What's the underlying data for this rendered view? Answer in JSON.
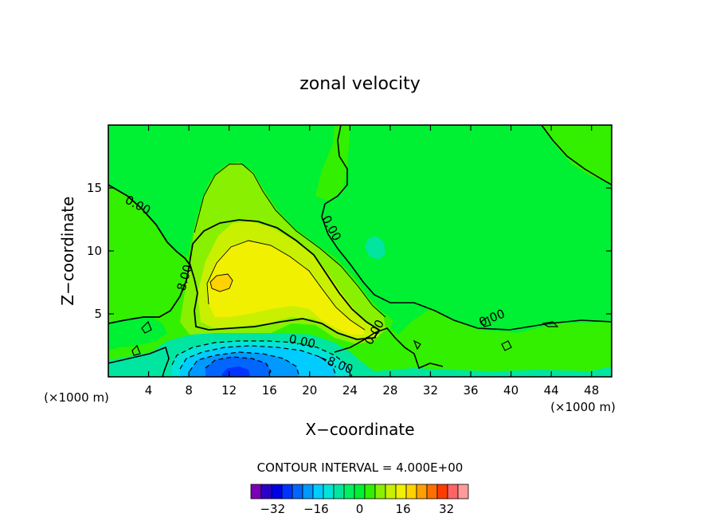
{
  "chart_data": {
    "type": "contour",
    "title": "zonal velocity",
    "xlabel": "X−coordinate",
    "ylabel": "Z−coordinate",
    "x_unit": "(×1000 m)",
    "y_unit": "(×1000 m)",
    "xlim": [
      0,
      50
    ],
    "ylim": [
      0,
      20
    ],
    "x_ticks": [
      4,
      8,
      12,
      16,
      20,
      24,
      28,
      32,
      36,
      40,
      44,
      48
    ],
    "y_ticks": [
      5,
      10,
      15
    ],
    "contour_interval_text": "CONTOUR INTERVAL = 4.000E+00",
    "contour_labels": [
      "0.00",
      "0.00",
      "0.00",
      "0.00",
      "8.00",
      "0.00",
      "−8.00"
    ],
    "colorbar": {
      "tick_labels": [
        "−32",
        "−16",
        "0",
        "16",
        "32"
      ],
      "tick_values": [
        -32,
        -16,
        0,
        16,
        32
      ],
      "levels": [
        -40,
        -36,
        -32,
        -28,
        -24,
        -20,
        -16,
        -12,
        -8,
        -4,
        0,
        4,
        8,
        12,
        16,
        20,
        24,
        28,
        32,
        36,
        40
      ],
      "colors": [
        "#7a00b5",
        "#2a00c8",
        "#0000e6",
        "#0033ff",
        "#0066ff",
        "#0099ff",
        "#00ccff",
        "#00e5d8",
        "#00e6a0",
        "#00f060",
        "#00f033",
        "#33f000",
        "#88f000",
        "#c8f000",
        "#f0f000",
        "#ffd200",
        "#ffa000",
        "#ff6e00",
        "#ff3c00",
        "#ff6464",
        "#ff9a9a"
      ]
    }
  }
}
